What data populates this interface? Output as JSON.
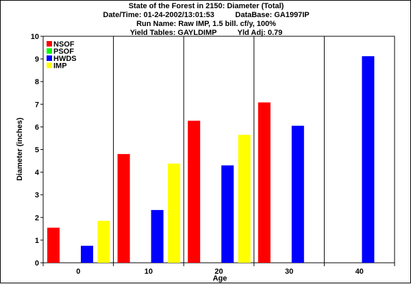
{
  "header": {
    "title": "State of the Forest in 2150: Diameter (Total)",
    "datetime": "Date/Time: 01-24-2002/13:01:53",
    "database": "DataBase: GA1997IP",
    "run_name": "Run Name: Raw IMP, 1.5 bill. cf/y, 100%",
    "yield_tables": "Yield Tables: GAYLDIMP",
    "yld_adj": "Yld Adj: 0.79"
  },
  "chart_data": {
    "type": "bar",
    "title": "State of the Forest in 2150: Diameter (Total)",
    "xlabel": "Age",
    "ylabel": "Diameter (inches)",
    "ylim": [
      0,
      10
    ],
    "yticks": [
      0,
      1,
      2,
      3,
      4,
      5,
      6,
      7,
      8,
      9,
      10
    ],
    "categories": [
      "0",
      "10",
      "20",
      "30",
      "40"
    ],
    "legend_position": "top-left",
    "grid": "vertical separators between age classes",
    "series": [
      {
        "name": "NSOF",
        "color": "#ff0000",
        "values": [
          1.55,
          4.8,
          6.27,
          7.08,
          null
        ]
      },
      {
        "name": "PSOF",
        "color": "#00ff00",
        "values": [
          null,
          null,
          null,
          null,
          null
        ]
      },
      {
        "name": "HWDS",
        "color": "#0000ff",
        "values": [
          0.75,
          2.33,
          4.3,
          6.05,
          9.12
        ]
      },
      {
        "name": "IMP",
        "color": "#ffff00",
        "values": [
          1.85,
          4.38,
          5.65,
          null,
          null
        ]
      }
    ]
  }
}
